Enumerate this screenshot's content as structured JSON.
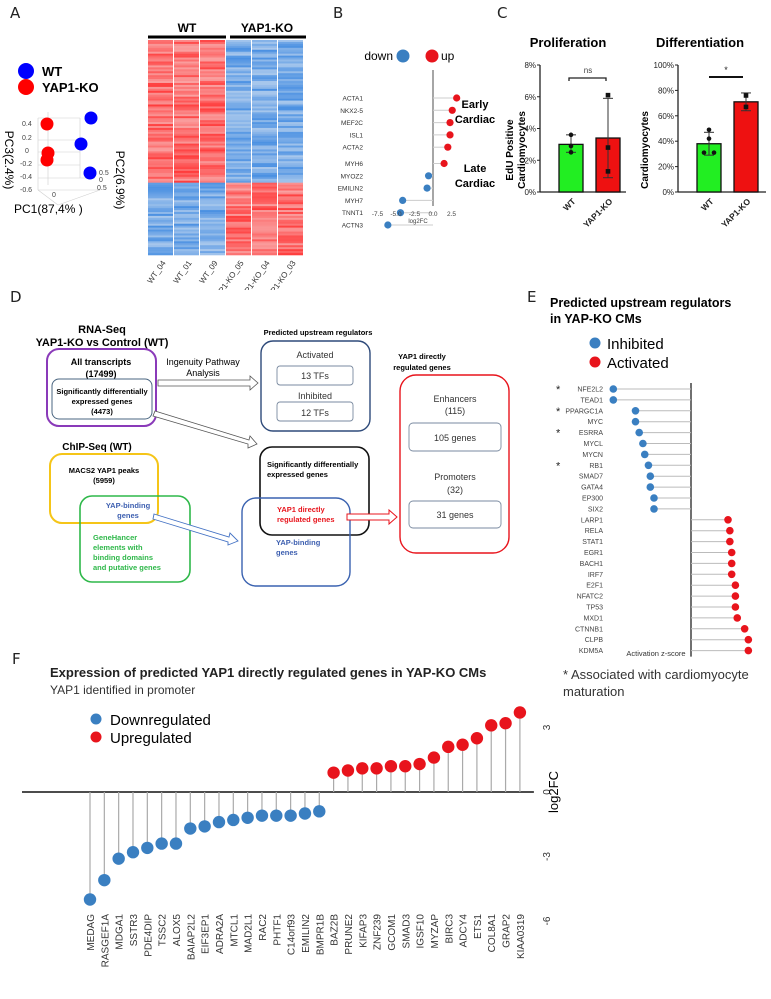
{
  "panels": {
    "A": "A",
    "B": "B",
    "C": "C",
    "D": "D",
    "E": "E",
    "F": "F"
  },
  "chart_data": [
    {
      "id": "A-pca",
      "type": "scatter",
      "title": "",
      "legend": [
        {
          "label": "WT",
          "color": "#0000ff"
        },
        {
          "label": "YAP1-KO",
          "color": "#ff0000"
        }
      ],
      "axes": {
        "x": "PC1(87,4% )",
        "y": "PC2(6.9%)",
        "z": "PC3(2.4%)"
      },
      "z_ticks": [
        "0.4",
        "0.2",
        "0",
        "-0.2",
        "-0.4",
        "-0.6"
      ],
      "y_ticks": [
        "0.5",
        "0",
        "0.5"
      ],
      "x_ticks": [
        "0"
      ],
      "points": [
        {
          "group": "YAP1-KO",
          "z": 0.4
        },
        {
          "group": "YAP1-KO",
          "z": -0.05
        },
        {
          "group": "YAP1-KO",
          "z": -0.15
        },
        {
          "group": "WT",
          "z": 0.45
        },
        {
          "group": "WT",
          "z": 0.15
        },
        {
          "group": "WT",
          "z": -0.4
        }
      ],
      "legend_position": "top-left"
    },
    {
      "id": "A-heatmap",
      "type": "heatmap",
      "groups": [
        {
          "label": "WT",
          "samples": [
            "WT_04",
            "WT_01",
            "WT_09"
          ]
        },
        {
          "label": "YAP1-KO",
          "samples": [
            "YAP1-KO_05",
            "YAP1-KO_04",
            "YAP1-KO_03"
          ]
        }
      ],
      "colors": {
        "high": "#ff3333",
        "low": "#4a90e2",
        "mid": "#f3f3f3"
      },
      "blocks": [
        {
          "fraction": 0.66,
          "WT": "high",
          "YAP1-KO": "low"
        },
        {
          "fraction": 0.34,
          "WT": "low",
          "YAP1-KO": "high"
        }
      ]
    },
    {
      "id": "B-lollipop",
      "type": "scatter",
      "legend": [
        {
          "label": "down",
          "color": "#3a7fc1"
        },
        {
          "label": "up",
          "color": "#e8141c"
        }
      ],
      "xlabel": "log2FC",
      "xlim": [
        -7.5,
        3.5
      ],
      "x_ticks": [
        "-7.5",
        "-5.0",
        "-2.5",
        "0.0",
        "2.5"
      ],
      "groups": [
        {
          "label_line1": "Early",
          "label_line2": "Cardiac"
        },
        {
          "label_line1": "Late",
          "label_line2": "Cardiac"
        }
      ],
      "genes": [
        "ACTA1",
        "NKX2-5",
        "MEF2C",
        "ISL1",
        "ACTA2",
        "MYH6",
        "MYOZ2",
        "EMILIN2",
        "MYH7",
        "TNNT1",
        "ACTN3"
      ],
      "values": [
        3.2,
        2.6,
        2.3,
        2.3,
        2.0,
        1.5,
        -0.6,
        -0.8,
        -4.1,
        -4.4,
        -6.1
      ]
    },
    {
      "id": "C-proliferation",
      "type": "bar",
      "title": "Proliferation",
      "ylabel": "EdU Positive Cardiomyocytes",
      "categories": [
        "WT",
        "YAP1-KO"
      ],
      "values": [
        3.0,
        3.4
      ],
      "errors": [
        [
          2.5,
          3.6
        ],
        [
          0.9,
          5.9
        ]
      ],
      "points": [
        [
          3.6,
          2.9,
          2.5
        ],
        [
          6.1,
          2.8,
          1.3
        ]
      ],
      "ylim": [
        0,
        8
      ],
      "y_ticks": [
        "0%",
        "2%",
        "4%",
        "6%",
        "8%"
      ],
      "colors": [
        "#22ee22",
        "#ee1111"
      ],
      "significance": "ns"
    },
    {
      "id": "C-differentiation",
      "type": "bar",
      "title": "Differentiation",
      "ylabel": "Cardiomyocytes",
      "categories": [
        "WT",
        "YAP1-KO"
      ],
      "values": [
        38,
        71
      ],
      "errors": [
        [
          29,
          47
        ],
        [
          64,
          78
        ]
      ],
      "points": [
        [
          49,
          42,
          31,
          31
        ],
        [
          76,
          67
        ]
      ],
      "ylim": [
        0,
        100
      ],
      "y_ticks": [
        "0%",
        "20%",
        "40%",
        "60%",
        "80%",
        "100%"
      ],
      "colors": [
        "#22ee22",
        "#ee1111"
      ],
      "significance": "*"
    },
    {
      "id": "E-regulators",
      "type": "scatter",
      "title_line1": "Predicted upstream regulators",
      "title_line2": "in YAP-KO CMs",
      "legend": [
        {
          "label": "Inhibited",
          "color": "#3a7fc1"
        },
        {
          "label": "Activated",
          "color": "#e8141c"
        }
      ],
      "xlabel": "Activation z-score",
      "xlim": [
        -5.5,
        3.5
      ],
      "x_ticks": [
        "-5.0",
        "-2.5",
        "0.0",
        "2.5"
      ],
      "genes": [
        "NFE2L2",
        "TEAD1",
        "PPARGC1A",
        "MYC",
        "ESRRA",
        "MYCL",
        "MYCN",
        "RB1",
        "SMAD7",
        "GATA4",
        "EP300",
        "SIX2",
        "LARP1",
        "RELA",
        "STAT1",
        "EGR1",
        "BACH1",
        "IRF7",
        "E2F1",
        "NFATC2",
        "TP53",
        "MXD1",
        "CTNNB1",
        "CLPB",
        "KDM5A"
      ],
      "values": [
        -4.2,
        -4.2,
        -3.0,
        -3.0,
        -2.8,
        -2.6,
        -2.5,
        -2.3,
        -2.2,
        -2.2,
        -2.0,
        -2.0,
        2.0,
        2.1,
        2.1,
        2.2,
        2.2,
        2.2,
        2.4,
        2.4,
        2.4,
        2.5,
        2.9,
        3.1,
        3.1
      ],
      "asterisk": [
        "NFE2L2",
        "PPARGC1A",
        "ESRRA",
        "RB1"
      ],
      "footnote_line1": "* Associated with cardiomyocyte",
      "footnote_line2": "maturation"
    },
    {
      "id": "F-expression",
      "type": "scatter",
      "title": "Expression of predicted YAP1 directly regulated genes in YAP-KO CMs",
      "subtitle": "YAP1 identified in promoter",
      "legend": [
        {
          "label": "Downregulated",
          "color": "#3a7fc1"
        },
        {
          "label": "Upregulated",
          "color": "#e8141c"
        }
      ],
      "ylabel": "log2FC",
      "ylim": [
        -6,
        4
      ],
      "y_ticks": [
        "3",
        "0",
        "-3",
        "-6"
      ],
      "genes": [
        "MEDAG",
        "RASGEF1A",
        "MDGA1",
        "SSTR3",
        "PDE4DIP",
        "TSSC2",
        "ALOX5",
        "BAIAP2L2",
        "EIF3EP1",
        "ADRA2A",
        "MTCL1",
        "MAD2L1",
        "RAC2",
        "PHTF1",
        "C14orf93",
        "EMILIN2",
        "BMPR1B",
        "BAZ2B",
        "PRUNE2",
        "KIFAP3",
        "ZNF239",
        "GCOM1",
        "SMAD3",
        "IGSF10",
        "MYZAP",
        "BIRC3",
        "ADCY4",
        "ETS1",
        "COL8A1",
        "GRAP2",
        "KIAA0319"
      ],
      "values": [
        -5.0,
        -4.1,
        -3.1,
        -2.8,
        -2.6,
        -2.4,
        -2.4,
        -1.7,
        -1.6,
        -1.4,
        -1.3,
        -1.2,
        -1.1,
        -1.1,
        -1.1,
        -1.0,
        -0.9,
        0.9,
        1.0,
        1.1,
        1.1,
        1.2,
        1.2,
        1.3,
        1.6,
        2.1,
        2.2,
        2.5,
        3.1,
        3.2,
        3.7
      ]
    }
  ],
  "diagram_D": {
    "rnaseq_title_line1": "RNA-Seq",
    "rnaseq_title_line2": "YAP1-KO vs Control (WT)",
    "all_transcripts_line1": "All transcripts",
    "all_transcripts_line2": "(17499)",
    "sdeg_line1": "Significantly differentially",
    "sdeg_line2": "expressed genes",
    "sdeg_line3": "(4473)",
    "ipa_line1": "Ingenuity Pathway",
    "ipa_line2": "Analysis",
    "chipseq_title": "ChIP-Seq (WT)",
    "macs2_line1": "MACS2 YAP1 peaks",
    "macs2_line2": "(5959)",
    "yap_binding_line1": "YAP-binding",
    "yap_binding_line2": "genes",
    "genehancer_line1": "GeneHancer",
    "genehancer_line2": "elements with",
    "genehancer_line3": "binding domains",
    "genehancer_line4": "and putative genes",
    "pur_title": "Predicted upstream regulators",
    "activated": "Activated",
    "activated_count": "13 TFs",
    "inhibited": "Inhibited",
    "inhibited_count": "12 TFs",
    "sdeg2_line1": "Significantly differentially",
    "sdeg2_line2": "expressed genes",
    "ydr_line1": "YAP1 directly",
    "ydr_line2": "regulated genes",
    "yap_binding2_line1": "YAP-binding",
    "yap_binding2_line2": "genes",
    "ydr_title_line1": "YAP1 directly",
    "ydr_title_line2": "regulated genes",
    "enhancers_line1": "Enhancers",
    "enhancers_line2": "(115)",
    "enhancers_genes": "105 genes",
    "promoters_line1": "Promoters",
    "promoters_line2": "(32)",
    "promoters_genes": "31 genes"
  }
}
